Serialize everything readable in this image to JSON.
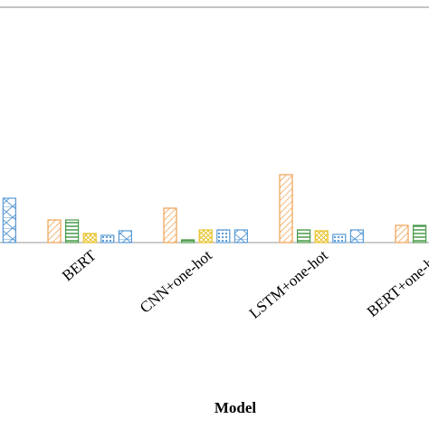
{
  "chart_data": {
    "type": "bar",
    "x_label": "Model",
    "categories": [
      null,
      "BERT",
      "CNN+one-hot",
      "LSTM+one-hot",
      "BERT+one-hot"
    ],
    "series": [
      {
        "color": "#f0a050",
        "values": [
          null,
          25,
          38,
          75,
          19
        ]
      },
      {
        "color": "#4a9a4a",
        "values": [
          null,
          25,
          3,
          14,
          19
        ]
      },
      {
        "color": "#e6c229",
        "values": [
          null,
          10,
          14,
          13,
          null
        ]
      },
      {
        "color": "#5b9bd5",
        "values": [
          null,
          8,
          14,
          9,
          null
        ]
      },
      {
        "color": "#5b9bd5",
        "values": [
          49,
          13,
          14,
          14,
          null
        ]
      }
    ],
    "ylim": [
      0,
      260
    ]
  }
}
